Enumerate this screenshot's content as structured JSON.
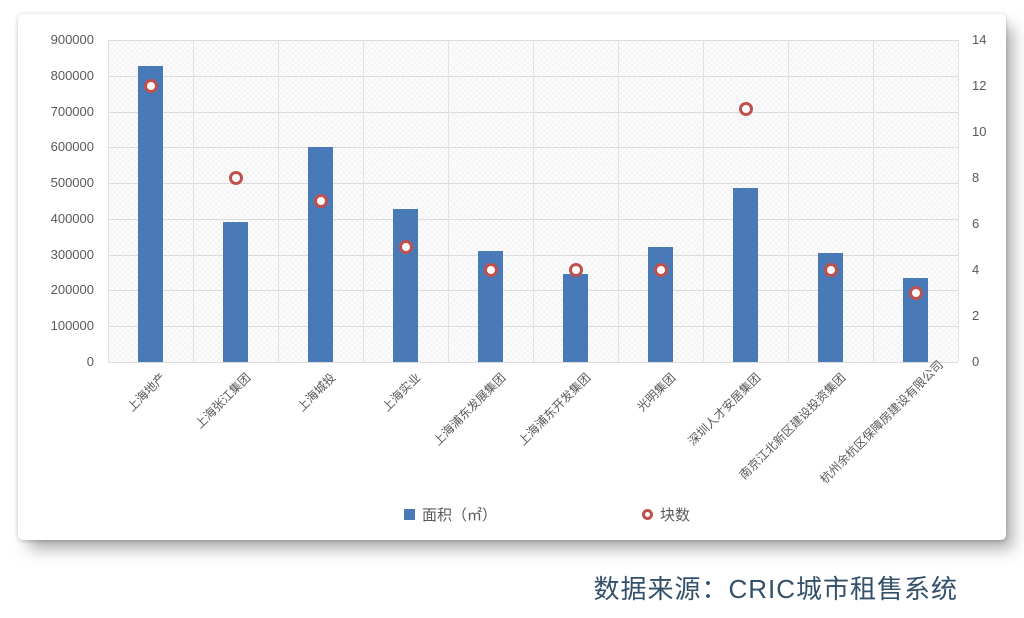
{
  "chart_data": {
    "type": "bar",
    "title": "",
    "categories": [
      "上海地产",
      "上海张江集团",
      "上海城投",
      "上海实业",
      "上海浦东发展集团",
      "上海浦东开发集团",
      "光明集团",
      "深圳人才安居集团",
      "南京江北新区建设投资集团",
      "杭州余杭区保障房建设有限公司"
    ],
    "series": [
      {
        "name": "面积（㎡）",
        "type": "bar",
        "axis": "left",
        "color": "#4a79b8",
        "values": [
          828000,
          390000,
          600000,
          428000,
          310000,
          245000,
          322000,
          485000,
          305000,
          235000
        ]
      },
      {
        "name": "块数",
        "type": "scatter",
        "axis": "right",
        "color": "#c0504d",
        "values": [
          12,
          8,
          7,
          5,
          4,
          4,
          4,
          11,
          4,
          3
        ]
      }
    ],
    "left_axis": {
      "min": 0,
      "max": 900000,
      "step": 100000,
      "ticks": [
        "900000",
        "800000",
        "700000",
        "600000",
        "500000",
        "400000",
        "300000",
        "200000",
        "100000",
        "0"
      ]
    },
    "right_axis": {
      "min": 0,
      "max": 14,
      "step": 2,
      "ticks": [
        "14",
        "12",
        "10",
        "8",
        "6",
        "4",
        "2",
        "0"
      ]
    },
    "grid": true,
    "legend_position": "bottom"
  },
  "source_note": "数据来源：CRIC城市租售系统",
  "colors": {
    "bar": "#4a79b8",
    "marker_ring": "#c0504d",
    "axis_text": "#595959",
    "gridline": "#dcdcdc",
    "source_text": "#33506b"
  }
}
